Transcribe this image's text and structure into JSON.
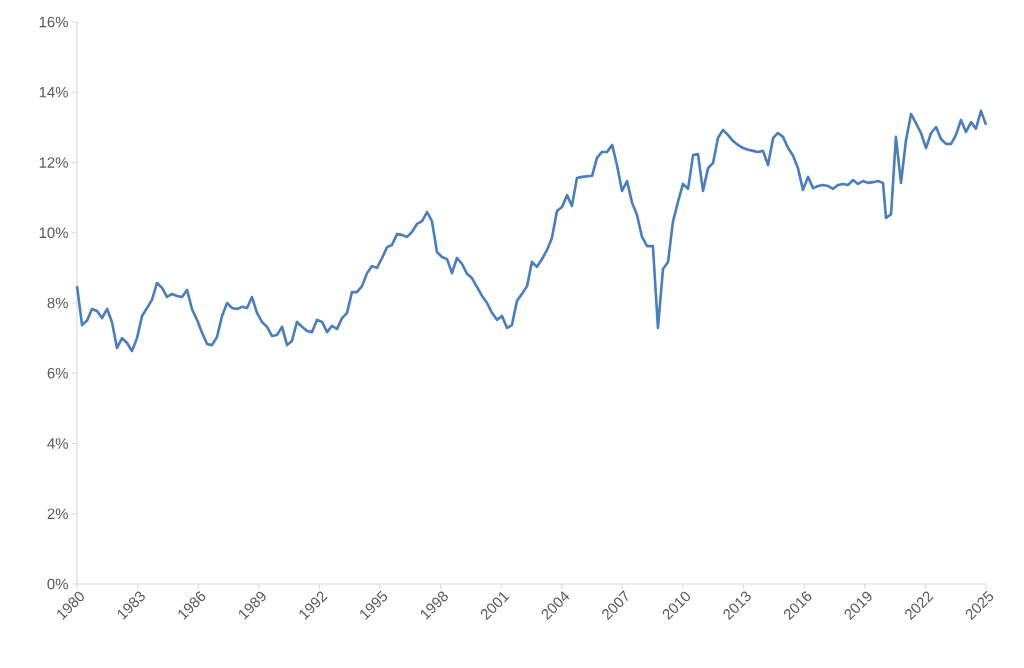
{
  "chart_data": {
    "type": "line",
    "color": "#4a7ebb",
    "xlim": [
      1980,
      2025
    ],
    "ylim": [
      0,
      16
    ],
    "xticks": [
      1980,
      1983,
      1986,
      1989,
      1992,
      1995,
      1998,
      2001,
      2004,
      2007,
      2010,
      2013,
      2016,
      2019,
      2022,
      2025
    ],
    "yticks": [
      {
        "value": 0,
        "label": "0%"
      },
      {
        "value": 2,
        "label": "2%"
      },
      {
        "value": 4,
        "label": "4%"
      },
      {
        "value": 6,
        "label": "6%"
      },
      {
        "value": 8,
        "label": "8%"
      },
      {
        "value": 10,
        "label": "10%"
      },
      {
        "value": 12,
        "label": "12%"
      },
      {
        "value": 14,
        "label": "14%"
      },
      {
        "value": 16,
        "label": "16%"
      }
    ],
    "x": [
      1980.0,
      1980.25,
      1980.5,
      1980.74,
      1980.99,
      1981.24,
      1981.49,
      1981.73,
      1981.98,
      1982.23,
      1982.48,
      1982.72,
      1982.97,
      1983.22,
      1983.47,
      1983.71,
      1983.96,
      1984.21,
      1984.46,
      1984.7,
      1984.95,
      1985.2,
      1985.45,
      1985.69,
      1985.94,
      1986.19,
      1986.44,
      1986.68,
      1986.93,
      1987.18,
      1987.43,
      1987.67,
      1987.92,
      1988.17,
      1988.42,
      1988.66,
      1988.91,
      1989.16,
      1989.41,
      1989.65,
      1989.9,
      1990.15,
      1990.4,
      1990.64,
      1990.89,
      1991.14,
      1991.39,
      1991.63,
      1991.88,
      1992.13,
      1992.38,
      1992.62,
      1992.87,
      1993.12,
      1993.37,
      1993.61,
      1993.86,
      1994.11,
      1994.36,
      1994.6,
      1994.85,
      1995.1,
      1995.35,
      1995.59,
      1995.84,
      1996.09,
      1996.34,
      1996.58,
      1996.83,
      1997.08,
      1997.33,
      1997.57,
      1997.82,
      1998.07,
      1998.32,
      1998.56,
      1998.81,
      1999.06,
      1999.31,
      1999.55,
      1999.8,
      2000.05,
      2000.3,
      2000.54,
      2000.79,
      2001.04,
      2001.29,
      2001.53,
      2001.78,
      2002.03,
      2002.28,
      2002.52,
      2002.77,
      2003.02,
      2003.27,
      2003.51,
      2003.76,
      2004.01,
      2004.26,
      2004.5,
      2004.75,
      2005.0,
      2005.5,
      2005.74,
      2005.99,
      2006.24,
      2006.49,
      2006.73,
      2006.98,
      2007.23,
      2007.48,
      2007.72,
      2007.97,
      2008.22,
      2008.51,
      2008.76,
      2009.01,
      2009.26,
      2009.5,
      2009.75,
      2010.0,
      2010.25,
      2010.5,
      2010.74,
      2010.99,
      2011.24,
      2011.49,
      2011.73,
      2011.98,
      2012.23,
      2012.48,
      2012.72,
      2012.97,
      2013.22,
      2013.47,
      2013.71,
      2013.96,
      2014.21,
      2014.46,
      2014.7,
      2014.95,
      2015.2,
      2015.45,
      2015.69,
      2015.94,
      2016.19,
      2016.44,
      2016.68,
      2016.93,
      2017.18,
      2017.43,
      2017.67,
      2017.92,
      2018.17,
      2018.42,
      2018.66,
      2018.91,
      2019.16,
      2019.41,
      2019.65,
      2019.9,
      2020.05,
      2020.3,
      2020.54,
      2020.79,
      2021.04,
      2021.29,
      2021.53,
      2021.78,
      2022.03,
      2022.28,
      2022.53,
      2022.77,
      2023.02,
      2023.27,
      2023.51,
      2023.76,
      2024.01,
      2024.26,
      2024.5,
      2024.75,
      2025.0
    ],
    "values": [
      8.48,
      7.37,
      7.5,
      7.83,
      7.77,
      7.57,
      7.83,
      7.46,
      6.72,
      7.0,
      6.86,
      6.63,
      7.0,
      7.63,
      7.86,
      8.09,
      8.57,
      8.43,
      8.17,
      8.26,
      8.2,
      8.17,
      8.37,
      7.83,
      7.52,
      7.15,
      6.83,
      6.8,
      7.03,
      7.63,
      8.0,
      7.86,
      7.83,
      7.89,
      7.86,
      8.17,
      7.72,
      7.46,
      7.32,
      7.06,
      7.09,
      7.32,
      6.8,
      6.92,
      7.46,
      7.32,
      7.2,
      7.17,
      7.52,
      7.46,
      7.17,
      7.35,
      7.26,
      7.57,
      7.72,
      8.31,
      8.31,
      8.48,
      8.85,
      9.05,
      9.0,
      9.28,
      9.59,
      9.65,
      9.96,
      9.94,
      9.88,
      10.02,
      10.25,
      10.33,
      10.59,
      10.33,
      9.45,
      9.31,
      9.25,
      8.85,
      9.28,
      9.11,
      8.83,
      8.71,
      8.46,
      8.2,
      8.0,
      7.72,
      7.52,
      7.63,
      7.29,
      7.37,
      8.06,
      8.26,
      8.48,
      9.17,
      9.03,
      9.25,
      9.51,
      9.85,
      10.62,
      10.73,
      11.07,
      10.76,
      11.56,
      11.59,
      11.62,
      12.13,
      12.3,
      12.3,
      12.5,
      11.93,
      11.19,
      11.47,
      10.85,
      10.51,
      9.88,
      9.62,
      9.62,
      7.29,
      8.97,
      9.17,
      10.31,
      10.88,
      11.39,
      11.25,
      12.21,
      12.24,
      11.19,
      11.84,
      11.99,
      12.7,
      12.93,
      12.78,
      12.61,
      12.5,
      12.41,
      12.36,
      12.33,
      12.3,
      12.33,
      11.93,
      12.7,
      12.84,
      12.73,
      12.41,
      12.19,
      11.84,
      11.22,
      11.59,
      11.27,
      11.33,
      11.36,
      11.33,
      11.25,
      11.36,
      11.39,
      11.36,
      11.5,
      11.39,
      11.47,
      11.42,
      11.44,
      11.47,
      11.42,
      10.42,
      10.53,
      12.73,
      11.42,
      12.64,
      13.38,
      13.12,
      12.84,
      12.41,
      12.84,
      13.01,
      12.67,
      12.53,
      12.53,
      12.78,
      13.21,
      12.87,
      13.15,
      12.96,
      13.47,
      13.07
    ]
  }
}
